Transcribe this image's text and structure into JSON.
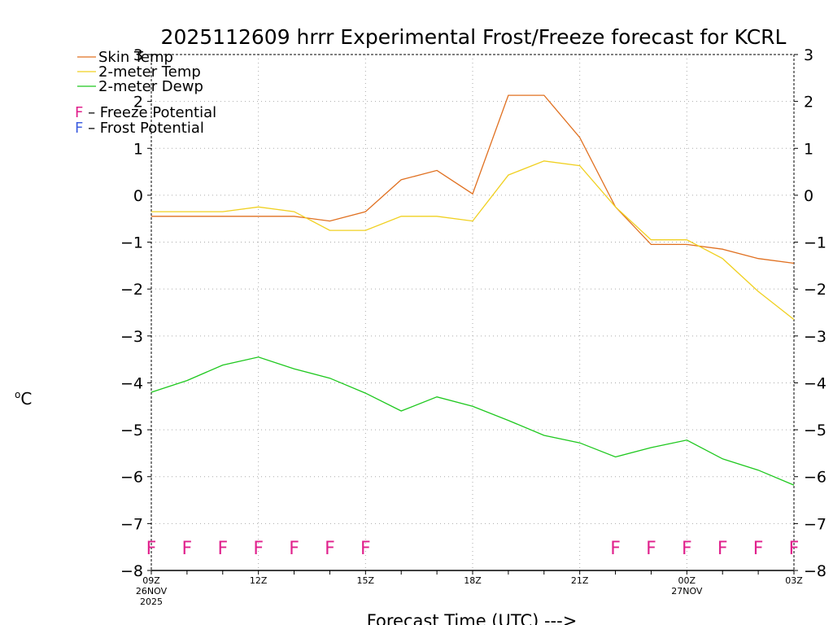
{
  "chart_data": {
    "type": "line",
    "title": "2025112609 hrrr Experimental Frost/Freeze forecast for KCRL",
    "xlabel": "Forecast Time (UTC) --->",
    "ylabel": "oC",
    "ylabel_main": "C",
    "ylabel_sup": "o",
    "ylim": [
      -8,
      3
    ],
    "yticks": [
      -8,
      -7,
      -6,
      -5,
      -4,
      -3,
      -2,
      -1,
      0,
      1,
      2,
      3
    ],
    "ytick_labels": [
      "−8",
      "−7",
      "−6",
      "−5",
      "−4",
      "−3",
      "−2",
      "−1",
      "0",
      "1",
      "2",
      "3"
    ],
    "xlim": [
      0,
      18
    ],
    "x": [
      0,
      1,
      2,
      3,
      4,
      5,
      6,
      7,
      8,
      9,
      10,
      11,
      12,
      13,
      14,
      15,
      16,
      17,
      18
    ],
    "xticks": [
      {
        "x": 0,
        "lines": [
          "09Z",
          "26NOV",
          "2025"
        ]
      },
      {
        "x": 3,
        "lines": [
          "12Z"
        ]
      },
      {
        "x": 6,
        "lines": [
          "15Z"
        ]
      },
      {
        "x": 9,
        "lines": [
          "18Z"
        ]
      },
      {
        "x": 12,
        "lines": [
          "21Z"
        ]
      },
      {
        "x": 15,
        "lines": [
          "00Z",
          "27NOV"
        ]
      },
      {
        "x": 18,
        "lines": [
          "03Z"
        ]
      }
    ],
    "grid": true,
    "legend_position": "top-left",
    "series": [
      {
        "name": "Skin Temp",
        "color": "#e07020",
        "values": [
          -0.45,
          -0.45,
          -0.45,
          -0.45,
          -0.45,
          -0.55,
          -0.35,
          0.33,
          0.53,
          0.03,
          2.13,
          2.13,
          1.23,
          -0.25,
          -1.05,
          -1.05,
          -1.15,
          -1.35,
          -1.45
        ]
      },
      {
        "name": "2-meter Temp",
        "color": "#f0d020",
        "values": [
          -0.35,
          -0.35,
          -0.35,
          -0.25,
          -0.35,
          -0.75,
          -0.75,
          -0.45,
          -0.45,
          -0.55,
          0.43,
          0.73,
          0.63,
          -0.25,
          -0.95,
          -0.95,
          -1.35,
          -2.05,
          -2.65
        ]
      },
      {
        "name": "2-meter Dewp",
        "color": "#1ec81e",
        "values": [
          -4.2,
          -3.95,
          -3.62,
          -3.45,
          -3.7,
          -3.9,
          -4.22,
          -4.6,
          -4.3,
          -4.5,
          -4.8,
          -5.12,
          -5.28,
          -5.58,
          -5.38,
          -5.22,
          -5.62,
          -5.86,
          -6.18
        ]
      }
    ],
    "legend_notes": [
      {
        "letter": "F",
        "text": " – Freeze Potential",
        "color": "#e0208c"
      },
      {
        "letter": "F",
        "text": " – Frost Potential",
        "color": "#4060e0"
      }
    ],
    "markers": {
      "label": "F",
      "color": "#e0208c",
      "y": -7.5,
      "x": [
        0,
        1,
        2,
        3,
        4,
        5,
        6,
        13,
        14,
        15,
        16,
        17,
        18
      ]
    }
  }
}
